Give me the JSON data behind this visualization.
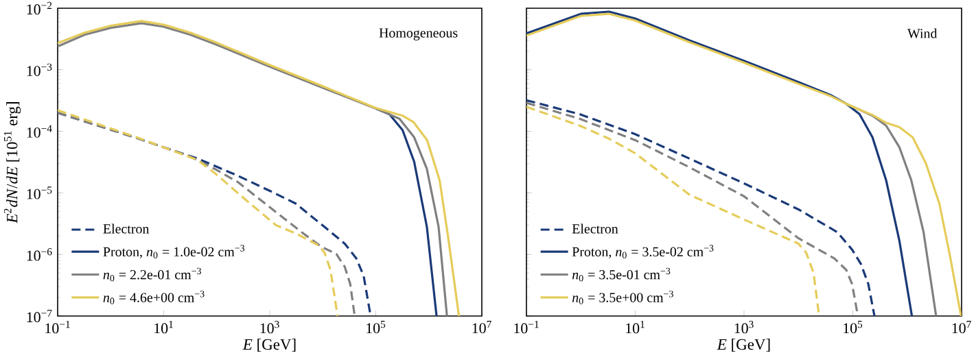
{
  "chart_data": [
    {
      "type": "line",
      "xlabel": "*E* [GeV]",
      "ylabel": "*E*$^{2}$*dN*/*dE* [10$^{51}$ erg]",
      "annotations": [
        "Homogeneous"
      ],
      "log": "xy",
      "legend": "bottom left",
      "xlim": [
        0.1,
        10000000
      ],
      "ylim": [
        1e-07,
        0.01
      ],
      "xticks": [
        {
          "value": 0.1,
          "label": "10$^{−1}$"
        },
        {
          "value": 10,
          "label": "10$^{1}$"
        },
        {
          "value": 1000,
          "label": "10$^{3}$"
        },
        {
          "value": 100000,
          "label": "10$^{5}$"
        },
        {
          "value": 10000000,
          "label": "10$^{7}$"
        }
      ],
      "yticks": [
        {
          "value": 1e-07,
          "label": "10$^{−7}$"
        },
        {
          "value": 1e-06,
          "label": "10$^{−6}$"
        },
        {
          "value": 1e-05,
          "label": "10$^{−5}$"
        },
        {
          "value": 0.0001,
          "label": "10$^{−4}$"
        },
        {
          "value": 0.001,
          "label": "10$^{−3}$"
        },
        {
          "value": 0.01,
          "label": "10$^{−2}$"
        }
      ],
      "series": [
        {
          "name": "Electron",
          "color": "#1a3a78",
          "line_style": "dashed",
          "x": [
            0.1,
            3.1,
            10,
            44,
            250,
            1130,
            3100,
            10800,
            26000,
            43000,
            59000,
            80000
          ],
          "values": [
            0.0002,
            7.8e-05,
            5.5e-05,
            3.6e-05,
            1.9e-05,
            1.03e-05,
            6.7e-06,
            2.8e-06,
            1.5e-06,
            8.6e-07,
            4.5e-07,
            1e-07
          ]
        },
        {
          "color": "#808080",
          "line_style": "dashed",
          "x": [
            0.1,
            3.1,
            10,
            30,
            92,
            250,
            1130,
            4000,
            9500,
            18000,
            26000,
            33000,
            40000
          ],
          "values": [
            0.0002,
            7.8e-05,
            5.5e-05,
            4e-05,
            2.45e-05,
            1.5e-05,
            5.4e-06,
            2.3e-06,
            1.33e-06,
            1.02e-06,
            6.3e-07,
            3.3e-07,
            1e-07
          ]
        },
        {
          "color": "#e5cc5a",
          "line_style": "dashed",
          "x": [
            0.1,
            3.1,
            10,
            44,
            92,
            320,
            1300,
            3100,
            8400,
            10800,
            14000,
            19000
          ],
          "values": [
            0.00022,
            8e-05,
            5.5e-05,
            3.4e-05,
            2.1e-05,
            8.3e-06,
            3e-06,
            2.2e-06,
            1.4e-06,
            1.07e-06,
            5.6e-07,
            1e-07
          ]
        },
        {
          "name": "Proton, *n*$_{0}$ = 1.0e-02 cm$^{−3}$",
          "color": "#1a3a78",
          "line_style": "solid",
          "x": [
            100000,
            180000,
            320000,
            530000,
            920000,
            1400000
          ],
          "values": [
            0.000235,
            0.00019,
            0.000105,
            3.2e-05,
            2.8e-06,
            1e-07
          ]
        },
        {
          "name": "*n*$_{0}$ = 2.2e-01 cm$^{−3}$",
          "color": "#808080",
          "line_style": "solid",
          "x": [
            0.1,
            0.32,
            1,
            3.8,
            10,
            32,
            100,
            1000,
            10000,
            100000,
            280000,
            530000,
            920000,
            1530000,
            2200000
          ],
          "values": [
            0.0024,
            0.0037,
            0.0048,
            0.0057,
            0.005,
            0.0037,
            0.00255,
            0.00112,
            0.00051,
            0.000235,
            0.00016,
            8e-05,
            2.45e-05,
            2.8e-06,
            1e-07
          ]
        },
        {
          "name": "*n*$_{0}$ = 4.6e+00 cm$^{−3}$",
          "color": "#e5cc5a",
          "line_style": "solid",
          "x": [
            0.1,
            0.32,
            1,
            3.8,
            10,
            32,
            100,
            1000,
            10000,
            100000,
            320000,
            520000,
            930000,
            1600000,
            2300000,
            3700000
          ],
          "values": [
            0.0027,
            0.004,
            0.0052,
            0.0062,
            0.0054,
            0.004,
            0.00275,
            0.0012,
            0.00054,
            0.00024,
            0.00018,
            0.00014,
            7.2e-05,
            1.6e-05,
            2e-06,
            1e-07
          ]
        }
      ]
    },
    {
      "type": "line",
      "xlabel": "*E* [GeV]",
      "annotations": [
        "Wind"
      ],
      "log": "xy",
      "legend": "bottom left",
      "tick_labels": "x",
      "xlim": [
        0.1,
        10000000
      ],
      "ylim": [
        1e-07,
        0.01
      ],
      "xticks": [
        {
          "value": 0.1,
          "label": "10$^{−1}$"
        },
        {
          "value": 10,
          "label": "10$^{1}$"
        },
        {
          "value": 1000,
          "label": "10$^{3}$"
        },
        {
          "value": 100000,
          "label": "10$^{5}$"
        },
        {
          "value": 10000000,
          "label": "10$^{7}$"
        }
      ],
      "yticks": [
        {
          "value": 1e-07,
          "label": null
        },
        {
          "value": 1e-06,
          "label": null
        },
        {
          "value": 1e-05,
          "label": null
        },
        {
          "value": 0.0001,
          "label": null
        },
        {
          "value": 0.001,
          "label": null
        },
        {
          "value": 0.01,
          "label": null
        }
      ],
      "series": [
        {
          "name": "Electron",
          "color": "#1a3a78",
          "line_style": "dashed",
          "x": [
            0.1,
            0.95,
            10,
            100,
            1000,
            10000,
            52000,
            97000,
            141000,
            193000,
            250000
          ],
          "values": [
            0.00032,
            0.00019,
            9e-05,
            3.6e-05,
            1.43e-05,
            5.4e-06,
            2.3e-06,
            1.2e-06,
            7e-07,
            3.3e-07,
            1e-07
          ]
        },
        {
          "color": "#808080",
          "line_style": "dashed",
          "x": [
            0.1,
            0.95,
            10,
            100,
            1000,
            10000,
            46000,
            76000,
            97000,
            124000
          ],
          "values": [
            0.00029,
            0.00016,
            7.2e-05,
            2.6e-05,
            8.8e-06,
            1.84e-06,
            8.6e-07,
            5.6e-07,
            3.3e-07,
            1e-07
          ]
        },
        {
          "color": "#e5cc5a",
          "line_style": "dashed",
          "x": [
            0.1,
            0.95,
            3.3,
            10,
            100,
            390,
            1000,
            10000,
            13900,
            19000,
            24000
          ],
          "values": [
            0.00025,
            0.000124,
            7.6e-05,
            4.4e-05,
            9.3e-06,
            5.4e-06,
            3.7e-06,
            1.5e-06,
            1.07e-06,
            5e-07,
            1e-07
          ]
        },
        {
          "name": "Proton, *n*$_{0}$ = 3.5e-02 cm$^{−3}$",
          "color": "#1a3a78",
          "line_style": "solid",
          "x": [
            0.1,
            1,
            3.3,
            10,
            100,
            1000,
            10000,
            40000,
            76000,
            133000,
            230000,
            410000,
            720000,
            1220000
          ],
          "values": [
            0.0039,
            0.0081,
            0.0088,
            0.0068,
            0.003,
            0.0014,
            0.00063,
            0.000385,
            0.00028,
            0.00019,
            8e-05,
            1.6e-05,
            1.65e-06,
            1e-07
          ]
        },
        {
          "name": "*n*$_{0}$ = 3.5e-01 cm$^{−3}$",
          "color": "#808080",
          "line_style": "solid",
          "x": [
            76000,
            133000,
            230000,
            410000,
            720000,
            1190000,
            2000000,
            3400000
          ],
          "values": [
            0.00028,
            0.000225,
            0.00018,
            0.000124,
            5.5e-05,
            1.6e-05,
            2.3e-06,
            1e-07
          ]
        },
        {
          "name": "*n*$_{0}$ = 3.5e+00 cm$^{−3}$",
          "color": "#e5cc5a",
          "line_style": "solid",
          "x": [
            0.1,
            1,
            3.3,
            10,
            100,
            1000,
            10000,
            40000,
            76000,
            133000,
            230000,
            410000,
            720000,
            1260000,
            2200000,
            3900000,
            6100000,
            9750000
          ],
          "values": [
            0.0036,
            0.0075,
            0.0081,
            0.0063,
            0.0028,
            0.0013,
            0.00059,
            0.00037,
            0.00028,
            0.000225,
            0.000185,
            0.000138,
            0.000117,
            8e-05,
            3.05e-05,
            6.7e-06,
            9.6e-07,
            1e-07
          ]
        }
      ]
    }
  ]
}
